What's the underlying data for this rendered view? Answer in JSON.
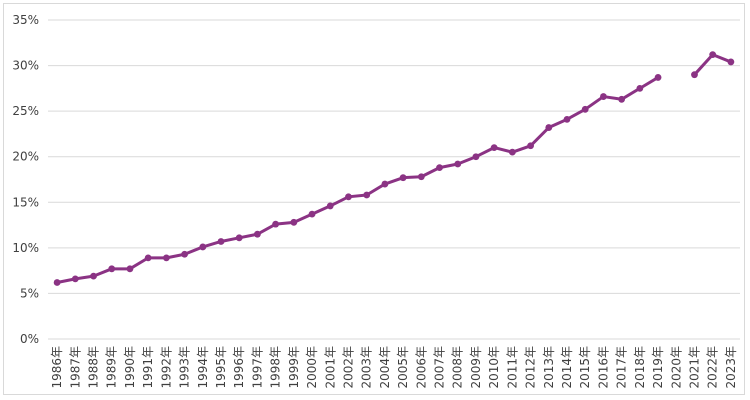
{
  "chart_data": {
    "type": "line",
    "title": "",
    "xlabel": "",
    "ylabel": "",
    "ylim": [
      0,
      35
    ],
    "y_ticks": [
      "0%",
      "5%",
      "10%",
      "15%",
      "20%",
      "25%",
      "30%",
      "35%"
    ],
    "y_tick_values": [
      0,
      5,
      10,
      15,
      20,
      25,
      30,
      35
    ],
    "grid": true,
    "legend": "none",
    "colors": {
      "series": "#8b3384",
      "grid": "#d9d9d9",
      "text": "#404040"
    },
    "categories": [
      "1986年",
      "1987年",
      "1988年",
      "1989年",
      "1990年",
      "1991年",
      "1992年",
      "1993年",
      "1994年",
      "1995年",
      "1996年",
      "1997年",
      "1998年",
      "1999年",
      "2000年",
      "2001年",
      "2002年",
      "2003年",
      "2004年",
      "2005年",
      "2006年",
      "2007年",
      "2008年",
      "2009年",
      "2010年",
      "2011年",
      "2012年",
      "2013年",
      "2014年",
      "2015年",
      "2016年",
      "2017年",
      "2018年",
      "2019年",
      "2020年",
      "2021年",
      "2022年",
      "2023年"
    ],
    "series": [
      {
        "name": "",
        "values": [
          6.2,
          6.6,
          6.9,
          7.7,
          7.7,
          8.9,
          8.9,
          9.3,
          10.1,
          10.7,
          11.1,
          11.5,
          12.6,
          12.8,
          13.7,
          14.6,
          15.6,
          15.8,
          17.0,
          17.7,
          17.8,
          18.8,
          19.2,
          20.0,
          21.0,
          20.5,
          21.2,
          23.2,
          24.1,
          25.2,
          26.6,
          26.3,
          27.5,
          28.7,
          null,
          29.0,
          31.2,
          30.4
        ]
      }
    ]
  }
}
